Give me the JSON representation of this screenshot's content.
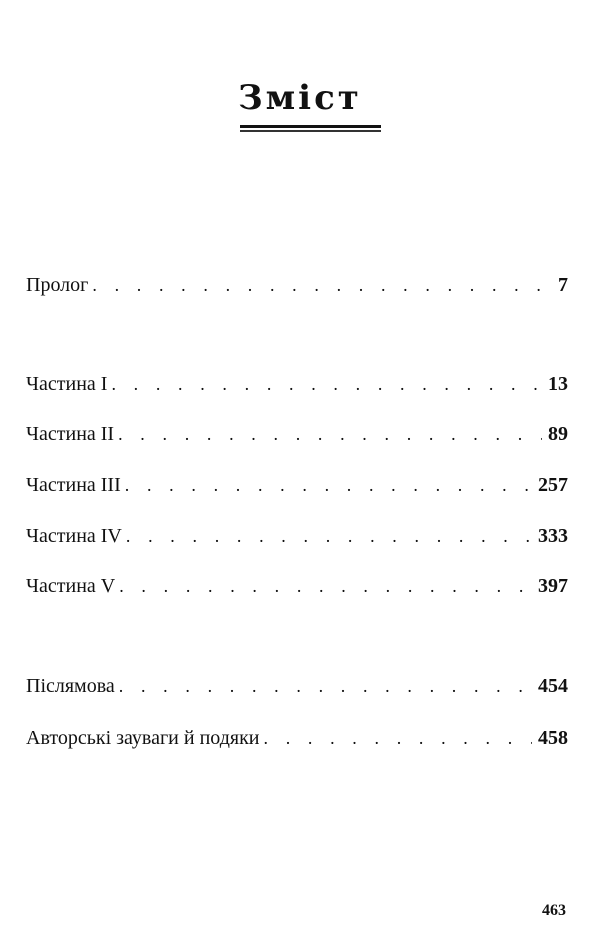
{
  "title": "Зміст",
  "entries": [
    {
      "label": "Пролог",
      "page": "7"
    },
    {
      "label": "Частина I",
      "page": "13"
    },
    {
      "label": "Частина II",
      "page": "89"
    },
    {
      "label": "Частина III",
      "page": "257"
    },
    {
      "label": "Частина IV",
      "page": "333"
    },
    {
      "label": "Частина V",
      "page": "397"
    },
    {
      "label": "Післямова",
      "page": "454"
    },
    {
      "label": "Авторські зауваги й подяки",
      "page": "458"
    }
  ],
  "page_number": "463"
}
